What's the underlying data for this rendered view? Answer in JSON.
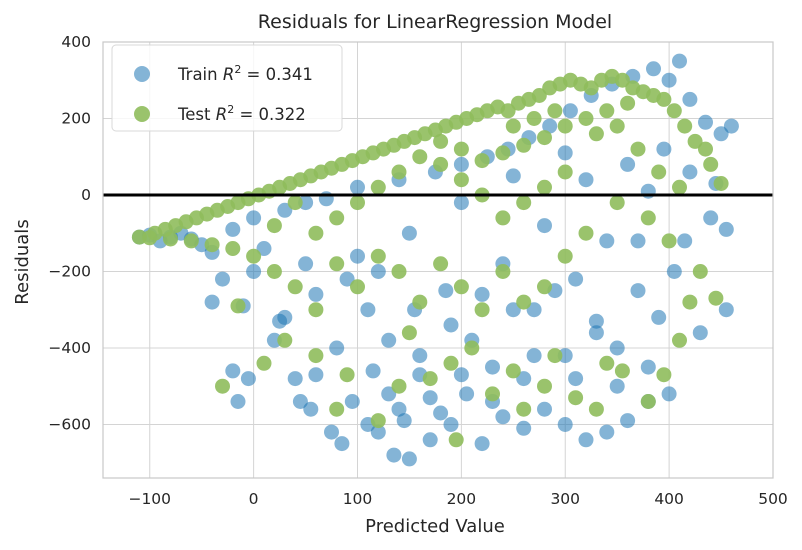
{
  "chart_data": {
    "type": "scatter",
    "title": "Residuals for LinearRegression Model",
    "xlabel": "Predicted Value",
    "ylabel": "Residuals",
    "xlim": [
      -145,
      500
    ],
    "ylim": [
      -740,
      400
    ],
    "xticks": [
      -100,
      0,
      100,
      200,
      300,
      400,
      500
    ],
    "yticks": [
      -600,
      -400,
      -200,
      0,
      200,
      400
    ],
    "xtick_labels": [
      "−100",
      "0",
      "100",
      "200",
      "300",
      "400",
      "500"
    ],
    "ytick_labels": [
      "−600",
      "−400",
      "−200",
      "0",
      "200",
      "400"
    ],
    "grid": true,
    "legend_position": "top-left",
    "zero_line": {
      "y": 0,
      "color": "#000000"
    },
    "series": [
      {
        "name": "Train R² = 0.341",
        "legend_label": {
          "prefix": "Train ",
          "math": "R",
          "sup": "2",
          "suffix": " = 0.341"
        },
        "color": "#1f77b4",
        "opacity": 0.55,
        "points": [
          [
            -110,
            -110
          ],
          [
            -100,
            -105
          ],
          [
            -90,
            -120
          ],
          [
            -80,
            -110
          ],
          [
            -70,
            -100
          ],
          [
            -60,
            -115
          ],
          [
            -50,
            -130
          ],
          [
            -40,
            -150
          ],
          [
            -40,
            -280
          ],
          [
            -30,
            -220
          ],
          [
            -20,
            -90
          ],
          [
            -20,
            -460
          ],
          [
            -15,
            -540
          ],
          [
            -10,
            -290
          ],
          [
            -5,
            -480
          ],
          [
            0,
            -60
          ],
          [
            10,
            -140
          ],
          [
            20,
            -380
          ],
          [
            25,
            -330
          ],
          [
            30,
            -40
          ],
          [
            40,
            -480
          ],
          [
            45,
            -540
          ],
          [
            50,
            -20
          ],
          [
            55,
            -560
          ],
          [
            60,
            -470
          ],
          [
            70,
            -10
          ],
          [
            75,
            -620
          ],
          [
            80,
            -400
          ],
          [
            85,
            -650
          ],
          [
            95,
            -540
          ],
          [
            100,
            20
          ],
          [
            110,
            -600
          ],
          [
            115,
            -460
          ],
          [
            120,
            -200
          ],
          [
            130,
            -520
          ],
          [
            135,
            -680
          ],
          [
            140,
            40
          ],
          [
            145,
            -590
          ],
          [
            150,
            -690
          ],
          [
            155,
            -300
          ],
          [
            160,
            -470
          ],
          [
            170,
            -640
          ],
          [
            175,
            60
          ],
          [
            180,
            -570
          ],
          [
            185,
            -250
          ],
          [
            190,
            -600
          ],
          [
            200,
            80
          ],
          [
            205,
            -520
          ],
          [
            210,
            -380
          ],
          [
            220,
            -650
          ],
          [
            225,
            100
          ],
          [
            230,
            -450
          ],
          [
            240,
            -580
          ],
          [
            245,
            120
          ],
          [
            250,
            -300
          ],
          [
            260,
            -610
          ],
          [
            265,
            150
          ],
          [
            270,
            -420
          ],
          [
            280,
            -560
          ],
          [
            285,
            180
          ],
          [
            290,
            -250
          ],
          [
            300,
            -600
          ],
          [
            305,
            220
          ],
          [
            310,
            -480
          ],
          [
            320,
            -640
          ],
          [
            325,
            260
          ],
          [
            330,
            -330
          ],
          [
            340,
            -620
          ],
          [
            345,
            290
          ],
          [
            350,
            -500
          ],
          [
            360,
            -590
          ],
          [
            365,
            310
          ],
          [
            370,
            -250
          ],
          [
            380,
            -450
          ],
          [
            385,
            330
          ],
          [
            390,
            -320
          ],
          [
            400,
            300
          ],
          [
            405,
            -200
          ],
          [
            410,
            350
          ],
          [
            415,
            -120
          ],
          [
            420,
            250
          ],
          [
            430,
            -360
          ],
          [
            435,
            190
          ],
          [
            440,
            -60
          ],
          [
            450,
            160
          ],
          [
            455,
            -300
          ],
          [
            460,
            180
          ],
          [
            455,
            -90
          ],
          [
            445,
            30
          ],
          [
            300,
            110
          ],
          [
            250,
            50
          ],
          [
            200,
            -20
          ],
          [
            150,
            -100
          ],
          [
            100,
            -160
          ],
          [
            50,
            -180
          ],
          [
            320,
            40
          ],
          [
            280,
            -80
          ],
          [
            240,
            -180
          ],
          [
            360,
            80
          ],
          [
            380,
            10
          ],
          [
            340,
            -120
          ],
          [
            220,
            -260
          ],
          [
            190,
            -340
          ],
          [
            160,
            -420
          ],
          [
            130,
            -380
          ],
          [
            110,
            -300
          ],
          [
            90,
            -220
          ],
          [
            60,
            -260
          ],
          [
            30,
            -320
          ],
          [
            0,
            -200
          ],
          [
            270,
            -300
          ],
          [
            310,
            -220
          ],
          [
            330,
            -360
          ],
          [
            350,
            -400
          ],
          [
            370,
            -120
          ],
          [
            395,
            120
          ],
          [
            420,
            60
          ],
          [
            400,
            -520
          ],
          [
            380,
            -540
          ],
          [
            300,
            -420
          ],
          [
            260,
            -480
          ],
          [
            230,
            -540
          ],
          [
            200,
            -470
          ],
          [
            170,
            -530
          ],
          [
            140,
            -560
          ],
          [
            120,
            -620
          ]
        ]
      },
      {
        "name": "Test R² = 0.322",
        "legend_label": {
          "prefix": "Test ",
          "math": "R",
          "sup": "2",
          "suffix": " = 0.322"
        },
        "color": "#8fbc5c",
        "opacity": 0.9,
        "points": [
          [
            -110,
            -110
          ],
          [
            -95,
            -100
          ],
          [
            -85,
            -90
          ],
          [
            -75,
            -80
          ],
          [
            -65,
            -70
          ],
          [
            -55,
            -60
          ],
          [
            -45,
            -50
          ],
          [
            -35,
            -40
          ],
          [
            -25,
            -30
          ],
          [
            -15,
            -20
          ],
          [
            -5,
            -10
          ],
          [
            5,
            0
          ],
          [
            15,
            10
          ],
          [
            25,
            20
          ],
          [
            35,
            30
          ],
          [
            45,
            40
          ],
          [
            55,
            50
          ],
          [
            65,
            60
          ],
          [
            75,
            70
          ],
          [
            85,
            80
          ],
          [
            95,
            90
          ],
          [
            105,
            100
          ],
          [
            115,
            110
          ],
          [
            125,
            120
          ],
          [
            135,
            130
          ],
          [
            145,
            140
          ],
          [
            155,
            150
          ],
          [
            165,
            160
          ],
          [
            175,
            170
          ],
          [
            185,
            180
          ],
          [
            195,
            190
          ],
          [
            205,
            200
          ],
          [
            215,
            210
          ],
          [
            225,
            220
          ],
          [
            235,
            230
          ],
          [
            245,
            220
          ],
          [
            255,
            240
          ],
          [
            265,
            250
          ],
          [
            275,
            260
          ],
          [
            285,
            280
          ],
          [
            295,
            290
          ],
          [
            305,
            300
          ],
          [
            315,
            290
          ],
          [
            325,
            280
          ],
          [
            335,
            300
          ],
          [
            345,
            310
          ],
          [
            355,
            300
          ],
          [
            365,
            280
          ],
          [
            375,
            270
          ],
          [
            385,
            260
          ],
          [
            395,
            250
          ],
          [
            405,
            220
          ],
          [
            415,
            180
          ],
          [
            425,
            140
          ],
          [
            435,
            120
          ],
          [
            440,
            80
          ],
          [
            450,
            30
          ],
          [
            445,
            -270
          ],
          [
            -30,
            -500
          ],
          [
            -15,
            -290
          ],
          [
            10,
            -440
          ],
          [
            30,
            -380
          ],
          [
            60,
            -420
          ],
          [
            80,
            -560
          ],
          [
            90,
            -470
          ],
          [
            120,
            -590
          ],
          [
            140,
            -500
          ],
          [
            150,
            -360
          ],
          [
            170,
            -480
          ],
          [
            190,
            -440
          ],
          [
            195,
            -640
          ],
          [
            210,
            -400
          ],
          [
            230,
            -520
          ],
          [
            250,
            -460
          ],
          [
            260,
            -560
          ],
          [
            280,
            -500
          ],
          [
            290,
            -420
          ],
          [
            310,
            -530
          ],
          [
            330,
            -560
          ],
          [
            340,
            -440
          ],
          [
            355,
            -460
          ],
          [
            380,
            -540
          ],
          [
            395,
            -470
          ],
          [
            410,
            -380
          ],
          [
            420,
            -280
          ],
          [
            430,
            -200
          ],
          [
            400,
            -120
          ],
          [
            380,
            -60
          ],
          [
            350,
            -20
          ],
          [
            320,
            -100
          ],
          [
            300,
            -160
          ],
          [
            280,
            -240
          ],
          [
            260,
            -280
          ],
          [
            240,
            -200
          ],
          [
            220,
            -300
          ],
          [
            200,
            -240
          ],
          [
            180,
            -180
          ],
          [
            160,
            -280
          ],
          [
            140,
            -200
          ],
          [
            120,
            -160
          ],
          [
            100,
            -240
          ],
          [
            80,
            -180
          ],
          [
            60,
            -300
          ],
          [
            40,
            -240
          ],
          [
            20,
            -200
          ],
          [
            0,
            -160
          ],
          [
            -20,
            -140
          ],
          [
            -40,
            -130
          ],
          [
            -60,
            -120
          ],
          [
            -80,
            -115
          ],
          [
            -100,
            -112
          ],
          [
            300,
            60
          ],
          [
            280,
            20
          ],
          [
            260,
            -20
          ],
          [
            240,
            -60
          ],
          [
            220,
            0
          ],
          [
            200,
            40
          ],
          [
            180,
            80
          ],
          [
            160,
            100
          ],
          [
            140,
            60
          ],
          [
            120,
            20
          ],
          [
            100,
            -20
          ],
          [
            80,
            -60
          ],
          [
            60,
            -100
          ],
          [
            40,
            -20
          ],
          [
            20,
            -80
          ],
          [
            330,
            160
          ],
          [
            350,
            180
          ],
          [
            370,
            120
          ],
          [
            390,
            60
          ],
          [
            410,
            20
          ],
          [
            360,
            240
          ],
          [
            340,
            220
          ],
          [
            320,
            200
          ],
          [
            300,
            180
          ],
          [
            280,
            150
          ],
          [
            260,
            130
          ],
          [
            240,
            110
          ],
          [
            220,
            90
          ],
          [
            200,
            120
          ],
          [
            180,
            140
          ],
          [
            250,
            180
          ],
          [
            270,
            200
          ],
          [
            290,
            220
          ]
        ]
      }
    ]
  }
}
